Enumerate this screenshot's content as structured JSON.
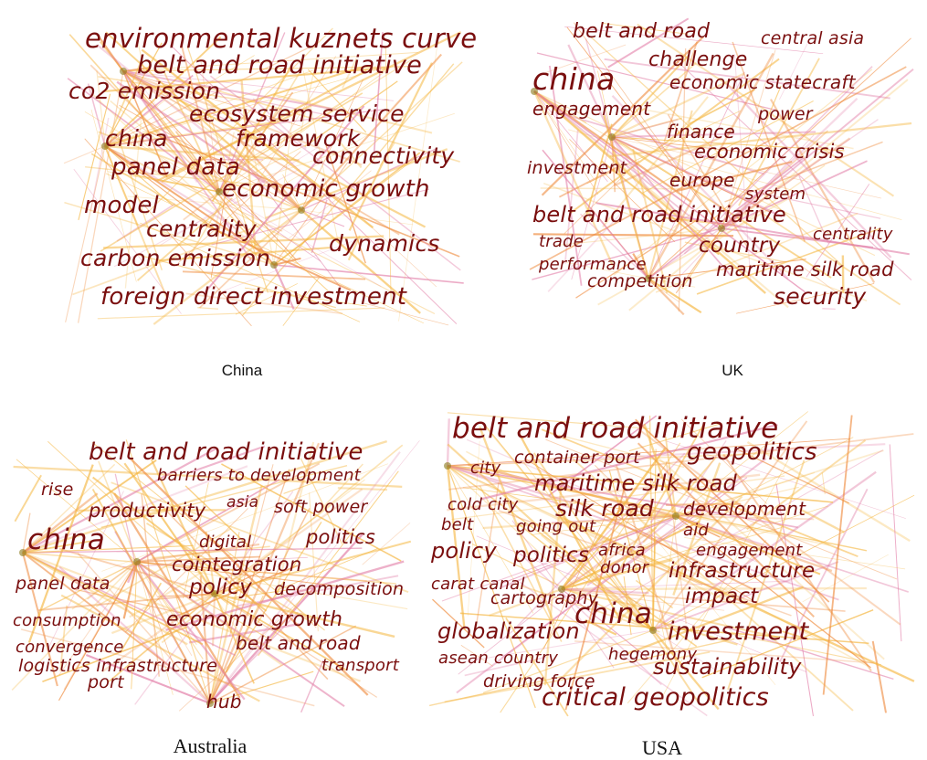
{
  "panels": {
    "china": {
      "label": "China",
      "keywords": [
        "environmental kuznets curve",
        "belt and road initiative",
        "co2 emission",
        "ecosystem service",
        "china",
        "framework",
        "connectivity",
        "panel data",
        "economic growth",
        "model",
        "centrality",
        "dynamics",
        "carbon emission",
        "foreign direct investment"
      ]
    },
    "uk": {
      "label": "UK",
      "keywords": [
        "belt and road",
        "central asia",
        "challenge",
        "china",
        "economic statecraft",
        "engagement",
        "power",
        "finance",
        "economic crisis",
        "investment",
        "europe",
        "system",
        "belt and road initiative",
        "centrality",
        "trade",
        "country",
        "performance",
        "maritime silk road",
        "competition",
        "security"
      ]
    },
    "australia": {
      "label": "Australia",
      "keywords": [
        "belt and road initiative",
        "barriers to development",
        "rise",
        "productivity",
        "asia",
        "soft power",
        "china",
        "digital",
        "politics",
        "cointegration",
        "panel data",
        "policy",
        "decomposition",
        "consumption",
        "economic growth",
        "convergence",
        "belt and road",
        "logistics infrastructure",
        "transport",
        "port",
        "hub"
      ]
    },
    "usa": {
      "label": "USA",
      "keywords": [
        "belt and road initiative",
        "container port",
        "geopolitics",
        "city",
        "maritime silk road",
        "cold city",
        "silk road",
        "development",
        "belt",
        "going out",
        "aid",
        "policy",
        "politics",
        "africa",
        "engagement",
        "donor",
        "infrastructure",
        "carat canal",
        "cartography",
        "impact",
        "china",
        "globalization",
        "investment",
        "asean country",
        "hegemony",
        "sustainability",
        "driving force",
        "critical geopolitics"
      ]
    }
  },
  "colors": {
    "keyword": "#7a0f0f",
    "edge_warm": "#f5b742",
    "edge_orange": "#ef8a3c",
    "edge_pink": "#e27fa8",
    "node_dark": "#8a7a1a"
  }
}
